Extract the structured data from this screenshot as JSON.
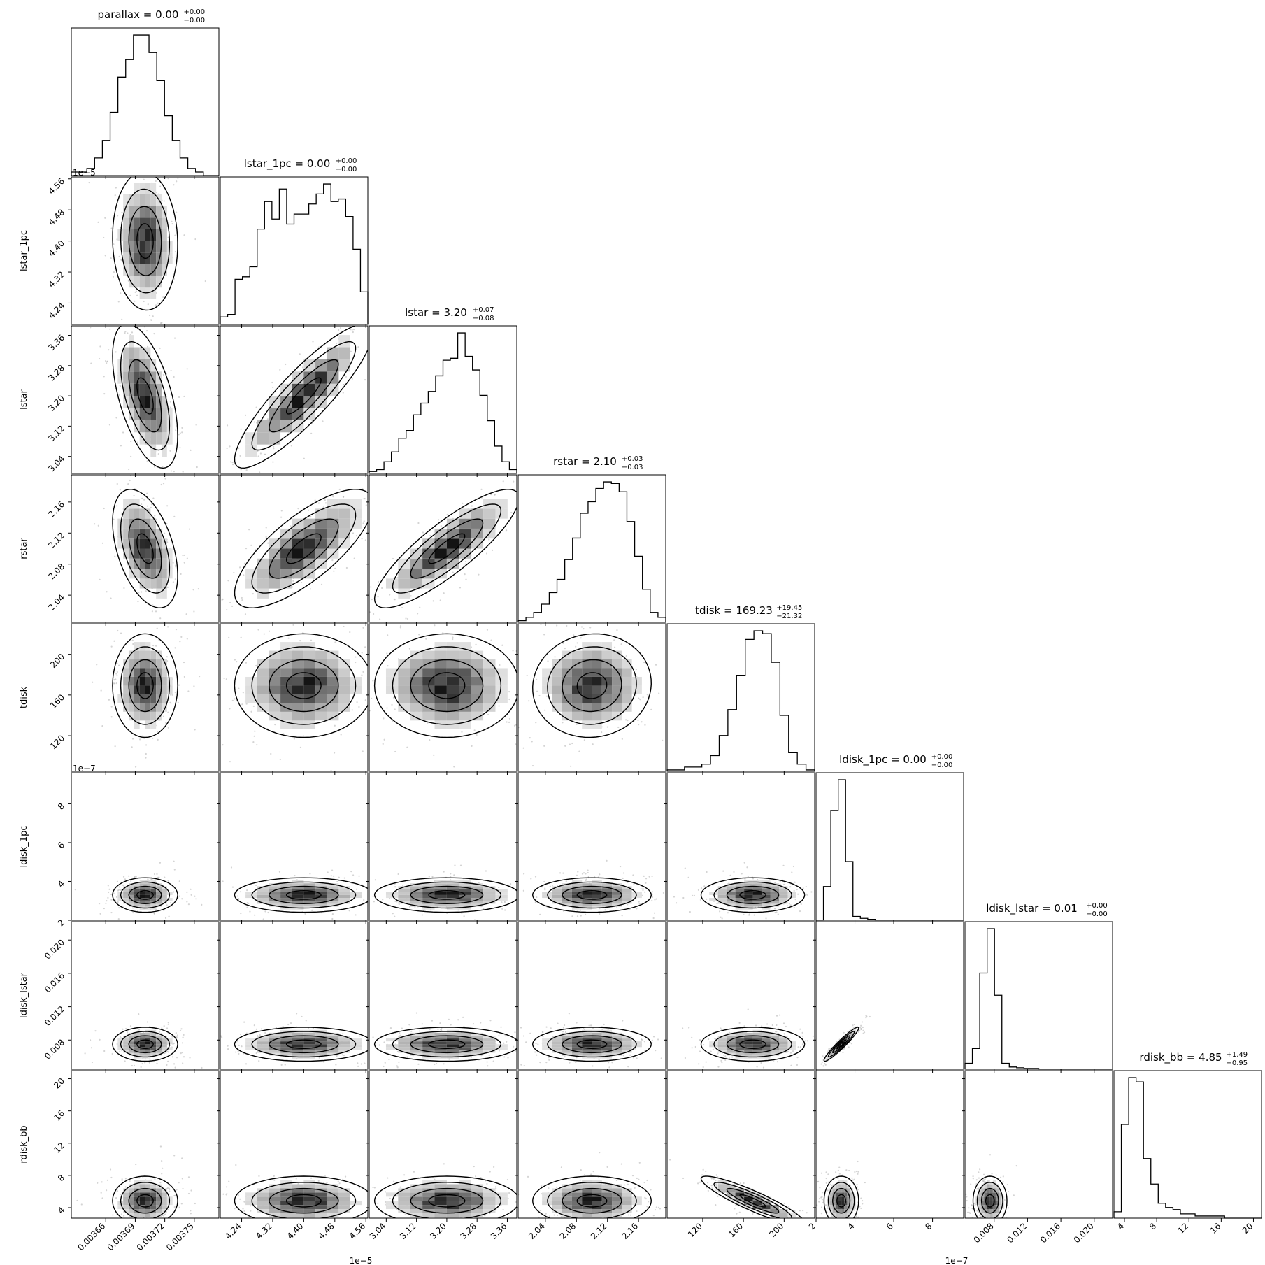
{
  "chart_data": {
    "type": "corner",
    "parameters": [
      {
        "key": "parallax",
        "label": "parallax",
        "title_main": "parallax = 0.00",
        "title_plus": "+0.00",
        "title_minus": "−0.00",
        "range": [
          0.003625,
          0.003775
        ],
        "ticks": [
          0.00366,
          0.00369,
          0.00372,
          0.00375
        ],
        "tick_labels": [
          "0.00366",
          "0.00369",
          "0.00372",
          "0.00375"
        ],
        "offset_text": "",
        "median": 0.0037,
        "sigma": 1.3e-05
      },
      {
        "key": "lstar_1pc",
        "label": "lstar_1pc",
        "title_main": "lstar_1pc = 0.00",
        "title_plus": "+0.00",
        "title_minus": "−0.00",
        "range": [
          4.185,
          4.565
        ],
        "ticks": [
          4.24,
          4.32,
          4.4,
          4.48,
          4.56
        ],
        "tick_labels": [
          "4.24",
          "4.32",
          "4.40",
          "4.48",
          "4.56"
        ],
        "offset_text": "1e−5",
        "median": 4.4,
        "sigma": 0.07
      },
      {
        "key": "lstar",
        "label": "lstar",
        "title_main": "lstar = 3.20",
        "title_plus": "+0.07",
        "title_minus": "−0.08",
        "range": [
          2.995,
          3.385
        ],
        "ticks": [
          3.04,
          3.12,
          3.2,
          3.28,
          3.36
        ],
        "tick_labels": [
          "3.04",
          "3.12",
          "3.20",
          "3.28",
          "3.36"
        ],
        "offset_text": "",
        "median": 3.2,
        "sigma": 0.075
      },
      {
        "key": "rstar",
        "label": "rstar",
        "title_main": "rstar = 2.10",
        "title_plus": "+0.03",
        "title_minus": "−0.03",
        "range": [
          2.005,
          2.195
        ],
        "ticks": [
          2.04,
          2.08,
          2.12,
          2.16
        ],
        "tick_labels": [
          "2.04",
          "2.08",
          "2.12",
          "2.16"
        ],
        "offset_text": "",
        "median": 2.1,
        "sigma": 0.03
      },
      {
        "key": "tdisk",
        "label": "tdisk",
        "title_main": "tdisk = 169.23",
        "title_plus": "+19.45",
        "title_minus": "−21.32",
        "range": [
          85,
          230
        ],
        "ticks": [
          120,
          160,
          200
        ],
        "tick_labels": [
          "120",
          "160",
          "200"
        ],
        "offset_text": "",
        "median": 169.23,
        "sigma": 20
      },
      {
        "key": "ldisk_1pc",
        "label": "ldisk_1pc",
        "title_main": "ldisk_1pc = 0.00",
        "title_plus": "+0.00",
        "title_minus": "−0.00",
        "range": [
          2.0,
          9.6
        ],
        "ticks": [
          2,
          4,
          6,
          8
        ],
        "tick_labels": [
          "2",
          "4",
          "6",
          "8"
        ],
        "offset_text": "1e−7",
        "median": 3.3,
        "sigma": 0.35
      },
      {
        "key": "ldisk_lstar",
        "label": "ldisk_lstar",
        "title_main": "ldisk_lstar = 0.01",
        "title_plus": "+0.00",
        "title_minus": "−0.00",
        "range": [
          0.0045,
          0.0222
        ],
        "ticks": [
          0.008,
          0.012,
          0.016,
          0.02
        ],
        "tick_labels": [
          "0.008",
          "0.012",
          "0.016",
          "0.020"
        ],
        "offset_text": "",
        "median": 0.0075,
        "sigma": 0.0008
      },
      {
        "key": "rdisk_bb",
        "label": "rdisk_bb",
        "title_main": "rdisk_bb = 4.85",
        "title_plus": "+1.49",
        "title_minus": "−0.95",
        "range": [
          2.7,
          21.0
        ],
        "ticks": [
          4,
          8,
          12,
          16,
          20
        ],
        "tick_labels": [
          "4",
          "8",
          "12",
          "16",
          "20"
        ],
        "offset_text": "",
        "median": 4.85,
        "sigma": 1.2
      }
    ],
    "histograms": [
      {
        "param": "parallax",
        "counts": [
          1,
          1,
          2,
          5,
          10,
          18,
          28,
          33,
          40,
          40,
          35,
          27,
          17,
          10,
          5,
          2,
          1,
          0,
          0
        ]
      },
      {
        "param": "lstar_1pc",
        "counts": [
          3,
          4,
          18,
          19,
          23,
          38,
          49,
          42,
          54,
          40,
          44,
          44,
          48,
          52,
          56,
          49,
          50,
          43,
          30,
          13
        ]
      },
      {
        "param": "lstar",
        "counts": [
          1,
          2,
          6,
          11,
          18,
          22,
          30,
          36,
          42,
          50,
          58,
          59,
          72,
          60,
          53,
          40,
          27,
          14,
          6,
          2
        ]
      },
      {
        "param": "rstar",
        "counts": [
          1,
          3,
          6,
          11,
          18,
          26,
          38,
          51,
          66,
          73,
          81,
          85,
          84,
          79,
          61,
          40,
          20,
          6,
          3
        ]
      },
      {
        "param": "tdisk",
        "counts": [
          1,
          1,
          3,
          3,
          5,
          11,
          25,
          43,
          67,
          92,
          98,
          96,
          76,
          39,
          13,
          5,
          1
        ]
      },
      {
        "param": "ldisk_1pc",
        "counts": [
          0,
          35,
          114,
          146,
          61,
          4,
          2,
          1,
          0,
          0,
          0,
          0,
          0,
          0,
          0,
          0,
          0,
          0,
          0,
          0
        ]
      },
      {
        "param": "ldisk_lstar",
        "counts": [
          8,
          28,
          130,
          190,
          100,
          8,
          3,
          2,
          1,
          1,
          0,
          0,
          0,
          0,
          0,
          0,
          0,
          0,
          0,
          0
        ]
      },
      {
        "param": "rdisk_bb",
        "counts": [
          3,
          44,
          66,
          64,
          28,
          16,
          7,
          5,
          4,
          2,
          2,
          1,
          1,
          1,
          1,
          0,
          0,
          0,
          0,
          0
        ]
      }
    ],
    "correlations": {
      "1_0": -0.05,
      "2_0": -0.55,
      "2_1": 0.88,
      "3_0": -0.45,
      "3_1": 0.75,
      "3_2": 0.85,
      "4_0": 0.0,
      "4_1": 0.0,
      "4_2": 0.0,
      "4_3": 0.05,
      "5_0": 0.0,
      "5_1": 0.0,
      "5_2": 0.0,
      "5_3": 0.0,
      "5_4": 0.0,
      "6_0": 0.0,
      "6_1": 0.0,
      "6_2": 0.0,
      "6_3": 0.0,
      "6_4": 0.0,
      "6_5": 0.95,
      "7_0": 0.0,
      "7_1": 0.0,
      "7_2": 0.0,
      "7_3": 0.0,
      "7_4": -0.9,
      "7_5": 0.0,
      "7_6": 0.0
    },
    "xlabel": "",
    "ylabel": "",
    "title": "",
    "grid": false,
    "legend": "none"
  },
  "colors": {
    "axes": "#000000",
    "hist": "#000000",
    "density": "#000000",
    "points": "#aaaaaa"
  }
}
